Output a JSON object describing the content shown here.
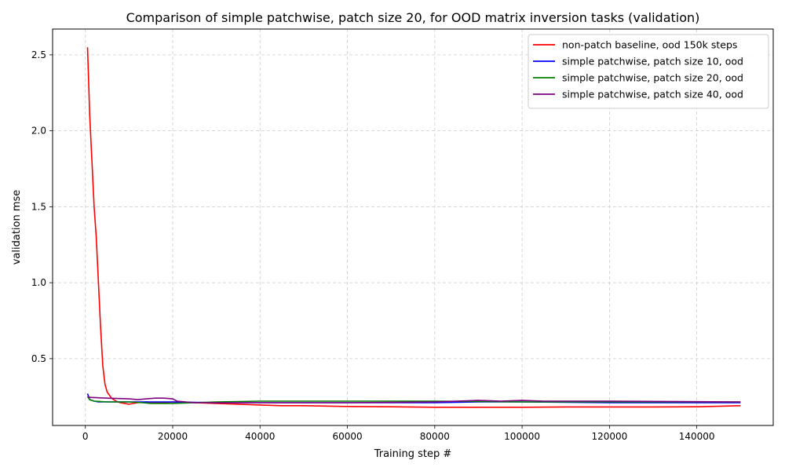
{
  "chart_data": {
    "type": "line",
    "title": "Comparison of simple patchwise, patch size 20, for OOD matrix inversion tasks (validation)",
    "xlabel": "Training step #",
    "ylabel": "validation mse",
    "xlim": [
      -7500,
      157500
    ],
    "ylim": [
      0.06,
      2.67
    ],
    "xticks": [
      0,
      20000,
      40000,
      60000,
      80000,
      100000,
      120000,
      140000
    ],
    "yticks": [
      0.5,
      1.0,
      1.5,
      2.0,
      2.5
    ],
    "xtick_labels": [
      "0",
      "20000",
      "40000",
      "60000",
      "80000",
      "100000",
      "120000",
      "140000"
    ],
    "ytick_labels": [
      "0.5",
      "1.0",
      "1.5",
      "2.0",
      "2.5"
    ],
    "grid": true,
    "legend_position": "top-right",
    "series": [
      {
        "name": "non-patch baseline, ood 150k steps",
        "color": "#ff0000",
        "x": [
          500,
          1000,
          1500,
          2000,
          2500,
          3000,
          3500,
          4000,
          4500,
          5000,
          6000,
          7000,
          8000,
          9000,
          10000,
          11000,
          12000,
          14000,
          16000,
          18000,
          20000,
          25000,
          30000,
          40000,
          45000,
          50000,
          60000,
          70000,
          80000,
          90000,
          100000,
          110000,
          120000,
          130000,
          140000,
          150000
        ],
        "y": [
          2.55,
          2.1,
          1.8,
          1.5,
          1.3,
          1.0,
          0.7,
          0.45,
          0.33,
          0.28,
          0.24,
          0.22,
          0.21,
          0.205,
          0.2,
          0.205,
          0.21,
          0.215,
          0.21,
          0.21,
          0.215,
          0.21,
          0.205,
          0.195,
          0.19,
          0.19,
          0.185,
          0.183,
          0.18,
          0.18,
          0.18,
          0.182,
          0.182,
          0.182,
          0.183,
          0.19
        ]
      },
      {
        "name": "simple patchwise, patch size 10, ood",
        "color": "#0000ff",
        "x": [
          500,
          1000,
          2000,
          3000,
          5000,
          10000,
          15000,
          20000,
          30000,
          40000,
          60000,
          80000,
          90000,
          100000,
          120000,
          150000
        ],
        "y": [
          0.27,
          0.23,
          0.22,
          0.215,
          0.215,
          0.215,
          0.215,
          0.215,
          0.21,
          0.21,
          0.21,
          0.21,
          0.215,
          0.215,
          0.21,
          0.21
        ]
      },
      {
        "name": "simple patchwise, patch size 20, ood",
        "color": "#008000",
        "x": [
          500,
          1000,
          2000,
          5000,
          10000,
          13000,
          15000,
          18000,
          20000,
          25000,
          30000,
          40000,
          60000,
          80000,
          100000,
          120000,
          150000
        ],
        "y": [
          0.25,
          0.23,
          0.22,
          0.215,
          0.215,
          0.21,
          0.205,
          0.205,
          0.205,
          0.21,
          0.215,
          0.22,
          0.22,
          0.22,
          0.215,
          0.215,
          0.215
        ]
      },
      {
        "name": "simple patchwise, patch size 40, ood",
        "color": "#800080",
        "x": [
          500,
          1000,
          5000,
          10000,
          12000,
          14000,
          16000,
          18000,
          20000,
          21000,
          25000,
          30000,
          40000,
          60000,
          80000,
          90000,
          95000,
          100000,
          105000,
          120000,
          150000
        ],
        "y": [
          0.25,
          0.245,
          0.24,
          0.235,
          0.23,
          0.235,
          0.24,
          0.24,
          0.235,
          0.22,
          0.21,
          0.21,
          0.21,
          0.21,
          0.215,
          0.225,
          0.22,
          0.225,
          0.22,
          0.22,
          0.215
        ]
      }
    ]
  }
}
